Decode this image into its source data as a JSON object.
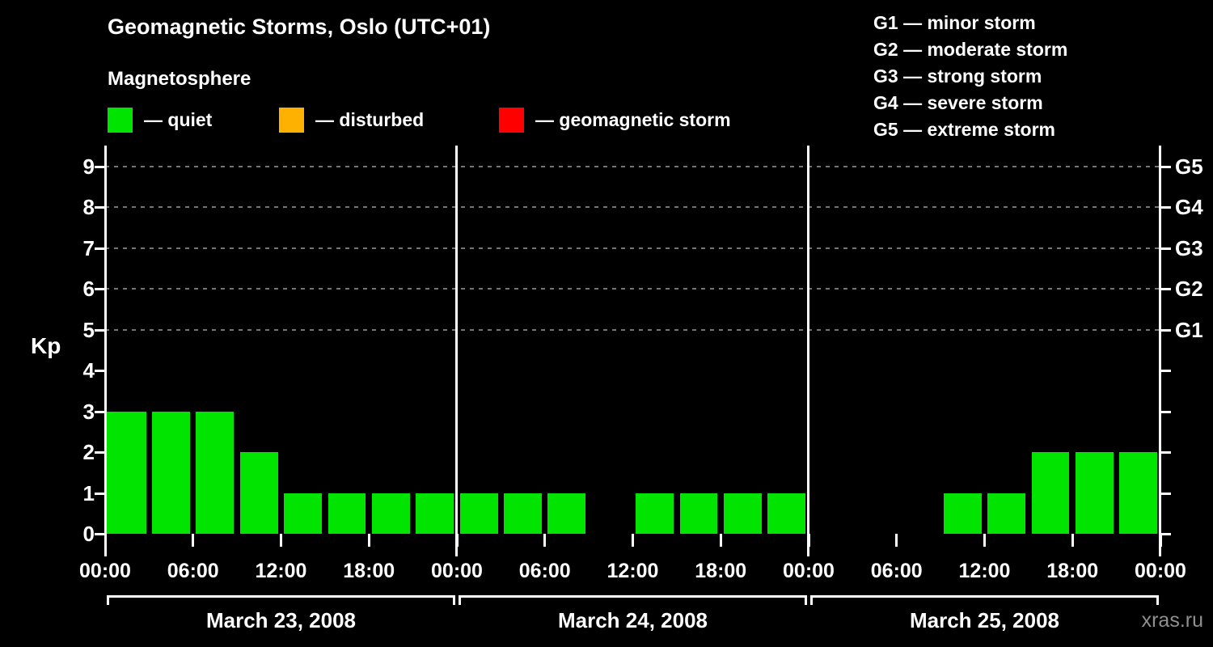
{
  "title": "Geomagnetic Storms, Oslo (UTC+01)",
  "subtitle": "Magnetosphere",
  "watermark": "xras.ru",
  "legend": {
    "items": [
      {
        "label": "— quiet",
        "color": "#00e400"
      },
      {
        "label": "— disturbed",
        "color": "#ffb100"
      },
      {
        "label": "— geomagnetic storm",
        "color": "#ff0000"
      }
    ]
  },
  "storm_scale": [
    "G1 — minor storm",
    "G2 — moderate storm",
    "G3 — strong storm",
    "G4 — severe storm",
    "G5 — extreme storm"
  ],
  "chart_data": {
    "type": "bar",
    "title": "Geomagnetic Storms, Oslo (UTC+01)",
    "ylabel": "Kp",
    "ylim": [
      0,
      9
    ],
    "yticks": [
      0,
      1,
      2,
      3,
      4,
      5,
      6,
      7,
      8,
      9
    ],
    "bar_color": "#00e400",
    "interval_hours": 3,
    "grid": "dashed horizontal lines at Kp 5-9",
    "grid_dashed_levels": [
      5,
      6,
      7,
      8,
      9
    ],
    "x_tick_labels": [
      "00:00",
      "06:00",
      "12:00",
      "18:00",
      "00:00",
      "06:00",
      "12:00",
      "18:00",
      "00:00",
      "06:00",
      "12:00",
      "18:00",
      "00:00"
    ],
    "right_axis_labels": [
      {
        "kp": 5,
        "label": "G1"
      },
      {
        "kp": 6,
        "label": "G2"
      },
      {
        "kp": 7,
        "label": "G3"
      },
      {
        "kp": 8,
        "label": "G4"
      },
      {
        "kp": 9,
        "label": "G5"
      }
    ],
    "leading_partial_kp": 3,
    "days": [
      {
        "date": "March 23, 2008",
        "kp_values": [
          3,
          3,
          3,
          2,
          1,
          1,
          1,
          1
        ]
      },
      {
        "date": "March 24, 2008",
        "kp_values": [
          1,
          1,
          1,
          0,
          1,
          1,
          1,
          1
        ]
      },
      {
        "date": "March 25, 2008",
        "kp_values": [
          0,
          0,
          0,
          1,
          1,
          2,
          2,
          2
        ]
      }
    ]
  }
}
